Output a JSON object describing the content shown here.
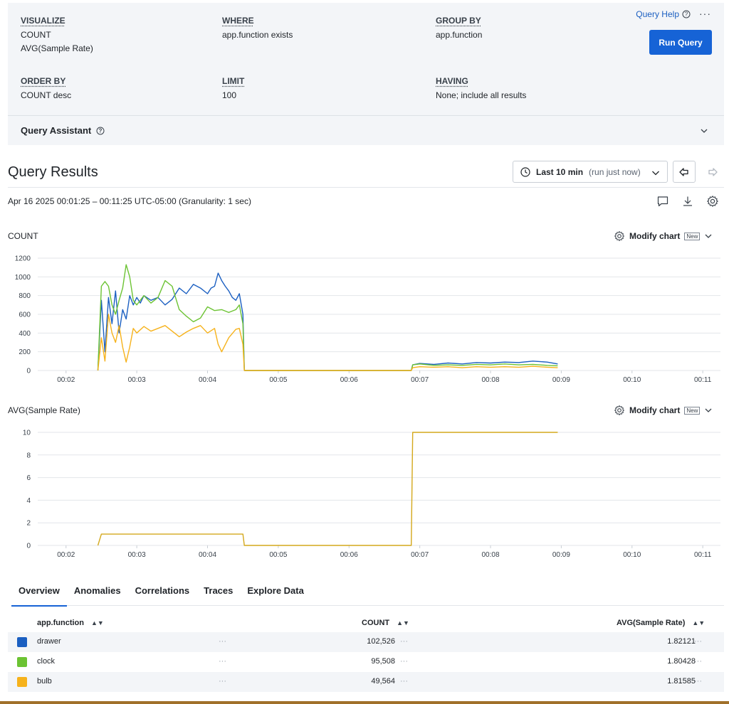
{
  "query": {
    "visualize": {
      "label": "VISUALIZE",
      "values": [
        "COUNT",
        "AVG(Sample Rate)"
      ]
    },
    "where": {
      "label": "WHERE",
      "value": "app.function exists"
    },
    "group_by": {
      "label": "GROUP BY",
      "value": "app.function"
    },
    "order_by": {
      "label": "ORDER BY",
      "value": "COUNT desc"
    },
    "limit": {
      "label": "LIMIT",
      "value": "100"
    },
    "having": {
      "label": "HAVING",
      "value": "None; include all results"
    },
    "help_label": "Query Help",
    "more_label": "···",
    "run_label": "Run Query",
    "assistant_label": "Query Assistant"
  },
  "results": {
    "title": "Query Results",
    "time_label": "Last 10 min",
    "time_sub": "(run just now)",
    "range_text": "Apr 16 2025 00:01:25 – 00:11:25 UTC-05:00 (Granularity: 1 sec)"
  },
  "charts": {
    "modify_label": "Modify chart",
    "new_badge": "New",
    "x_ticks": [
      "00:02",
      "00:03",
      "00:04",
      "00:05",
      "00:06",
      "00:07",
      "00:08",
      "00:09",
      "00:10",
      "00:11"
    ]
  },
  "chart_data": [
    {
      "type": "line",
      "title": "COUNT",
      "ylim": [
        0,
        1200
      ],
      "y_ticks": [
        0,
        200,
        400,
        600,
        800,
        1000,
        1200
      ],
      "x_unit": "minutes after 00:00",
      "series": [
        {
          "name": "drawer",
          "color": "#1b5fc1",
          "points": [
            [
              2.45,
              0
            ],
            [
              2.5,
              750
            ],
            [
              2.55,
              200
            ],
            [
              2.6,
              780
            ],
            [
              2.65,
              500
            ],
            [
              2.7,
              850
            ],
            [
              2.75,
              400
            ],
            [
              2.8,
              650
            ],
            [
              2.85,
              550
            ],
            [
              2.9,
              800
            ],
            [
              2.95,
              700
            ],
            [
              3.0,
              780
            ],
            [
              3.05,
              720
            ],
            [
              3.1,
              800
            ],
            [
              3.2,
              750
            ],
            [
              3.3,
              780
            ],
            [
              3.4,
              700
            ],
            [
              3.5,
              760
            ],
            [
              3.6,
              880
            ],
            [
              3.7,
              820
            ],
            [
              3.8,
              920
            ],
            [
              3.9,
              880
            ],
            [
              4.0,
              820
            ],
            [
              4.05,
              880
            ],
            [
              4.1,
              900
            ],
            [
              4.15,
              1040
            ],
            [
              4.2,
              960
            ],
            [
              4.25,
              900
            ],
            [
              4.3,
              850
            ],
            [
              4.35,
              780
            ],
            [
              4.4,
              750
            ],
            [
              4.45,
              820
            ],
            [
              4.5,
              600
            ],
            [
              4.52,
              0
            ],
            [
              6.88,
              0
            ],
            [
              6.9,
              60
            ],
            [
              7.0,
              75
            ],
            [
              7.2,
              65
            ],
            [
              7.4,
              80
            ],
            [
              7.6,
              70
            ],
            [
              7.8,
              85
            ],
            [
              8.0,
              80
            ],
            [
              8.2,
              90
            ],
            [
              8.4,
              85
            ],
            [
              8.6,
              100
            ],
            [
              8.8,
              90
            ],
            [
              8.95,
              70
            ]
          ]
        },
        {
          "name": "clock",
          "color": "#6cc333",
          "points": [
            [
              2.45,
              0
            ],
            [
              2.5,
              900
            ],
            [
              2.55,
              950
            ],
            [
              2.6,
              900
            ],
            [
              2.65,
              700
            ],
            [
              2.7,
              600
            ],
            [
              2.75,
              750
            ],
            [
              2.8,
              880
            ],
            [
              2.85,
              1130
            ],
            [
              2.9,
              1000
            ],
            [
              2.95,
              750
            ],
            [
              3.0,
              700
            ],
            [
              3.1,
              800
            ],
            [
              3.2,
              720
            ],
            [
              3.3,
              780
            ],
            [
              3.4,
              960
            ],
            [
              3.5,
              900
            ],
            [
              3.6,
              650
            ],
            [
              3.7,
              580
            ],
            [
              3.8,
              520
            ],
            [
              3.9,
              560
            ],
            [
              4.0,
              680
            ],
            [
              4.1,
              640
            ],
            [
              4.2,
              650
            ],
            [
              4.3,
              620
            ],
            [
              4.4,
              650
            ],
            [
              4.45,
              700
            ],
            [
              4.5,
              500
            ],
            [
              4.52,
              0
            ],
            [
              6.88,
              0
            ],
            [
              6.9,
              60
            ],
            [
              7.0,
              70
            ],
            [
              7.2,
              55
            ],
            [
              7.4,
              60
            ],
            [
              7.6,
              55
            ],
            [
              7.8,
              65
            ],
            [
              8.0,
              60
            ],
            [
              8.2,
              70
            ],
            [
              8.4,
              60
            ],
            [
              8.6,
              65
            ],
            [
              8.8,
              55
            ],
            [
              8.95,
              50
            ]
          ]
        },
        {
          "name": "bulb",
          "color": "#f6b21b",
          "points": [
            [
              2.45,
              0
            ],
            [
              2.5,
              350
            ],
            [
              2.55,
              100
            ],
            [
              2.6,
              600
            ],
            [
              2.65,
              400
            ],
            [
              2.7,
              300
            ],
            [
              2.75,
              480
            ],
            [
              2.8,
              250
            ],
            [
              2.85,
              90
            ],
            [
              2.9,
              250
            ],
            [
              2.95,
              450
            ],
            [
              3.0,
              400
            ],
            [
              3.1,
              470
            ],
            [
              3.2,
              420
            ],
            [
              3.3,
              450
            ],
            [
              3.4,
              480
            ],
            [
              3.5,
              420
            ],
            [
              3.6,
              360
            ],
            [
              3.7,
              410
            ],
            [
              3.8,
              450
            ],
            [
              3.9,
              480
            ],
            [
              4.0,
              400
            ],
            [
              4.1,
              450
            ],
            [
              4.15,
              280
            ],
            [
              4.2,
              200
            ],
            [
              4.3,
              350
            ],
            [
              4.4,
              440
            ],
            [
              4.45,
              450
            ],
            [
              4.5,
              280
            ],
            [
              4.52,
              0
            ],
            [
              6.88,
              0
            ],
            [
              6.9,
              30
            ],
            [
              7.0,
              40
            ],
            [
              7.2,
              35
            ],
            [
              7.4,
              40
            ],
            [
              7.6,
              30
            ],
            [
              7.8,
              40
            ],
            [
              8.0,
              35
            ],
            [
              8.2,
              40
            ],
            [
              8.4,
              35
            ],
            [
              8.6,
              45
            ],
            [
              8.8,
              35
            ],
            [
              8.95,
              30
            ]
          ]
        }
      ]
    },
    {
      "type": "line",
      "title": "AVG(Sample Rate)",
      "ylim": [
        0,
        10
      ],
      "y_ticks": [
        0,
        2,
        4,
        6,
        8,
        10
      ],
      "x_unit": "minutes after 00:00",
      "series": [
        {
          "name": "avg",
          "color": "#d4a81c",
          "points": [
            [
              2.45,
              0
            ],
            [
              2.5,
              1
            ],
            [
              4.5,
              1
            ],
            [
              4.52,
              0
            ],
            [
              6.88,
              0
            ],
            [
              6.9,
              10
            ],
            [
              8.95,
              10
            ]
          ]
        }
      ]
    }
  ],
  "tabs": [
    "Overview",
    "Anomalies",
    "Correlations",
    "Traces",
    "Explore Data"
  ],
  "table": {
    "headers": [
      "app.function",
      "COUNT",
      "AVG(Sample Rate)"
    ],
    "dots": "···",
    "rows": [
      {
        "name": "drawer",
        "color": "#1b5fc1",
        "count": "102,526",
        "avg": "1.82121"
      },
      {
        "name": "clock",
        "color": "#6cc333",
        "count": "95,508",
        "avg": "1.80428"
      },
      {
        "name": "bulb",
        "color": "#f6b21b",
        "count": "49,564",
        "avg": "1.81585"
      }
    ]
  }
}
